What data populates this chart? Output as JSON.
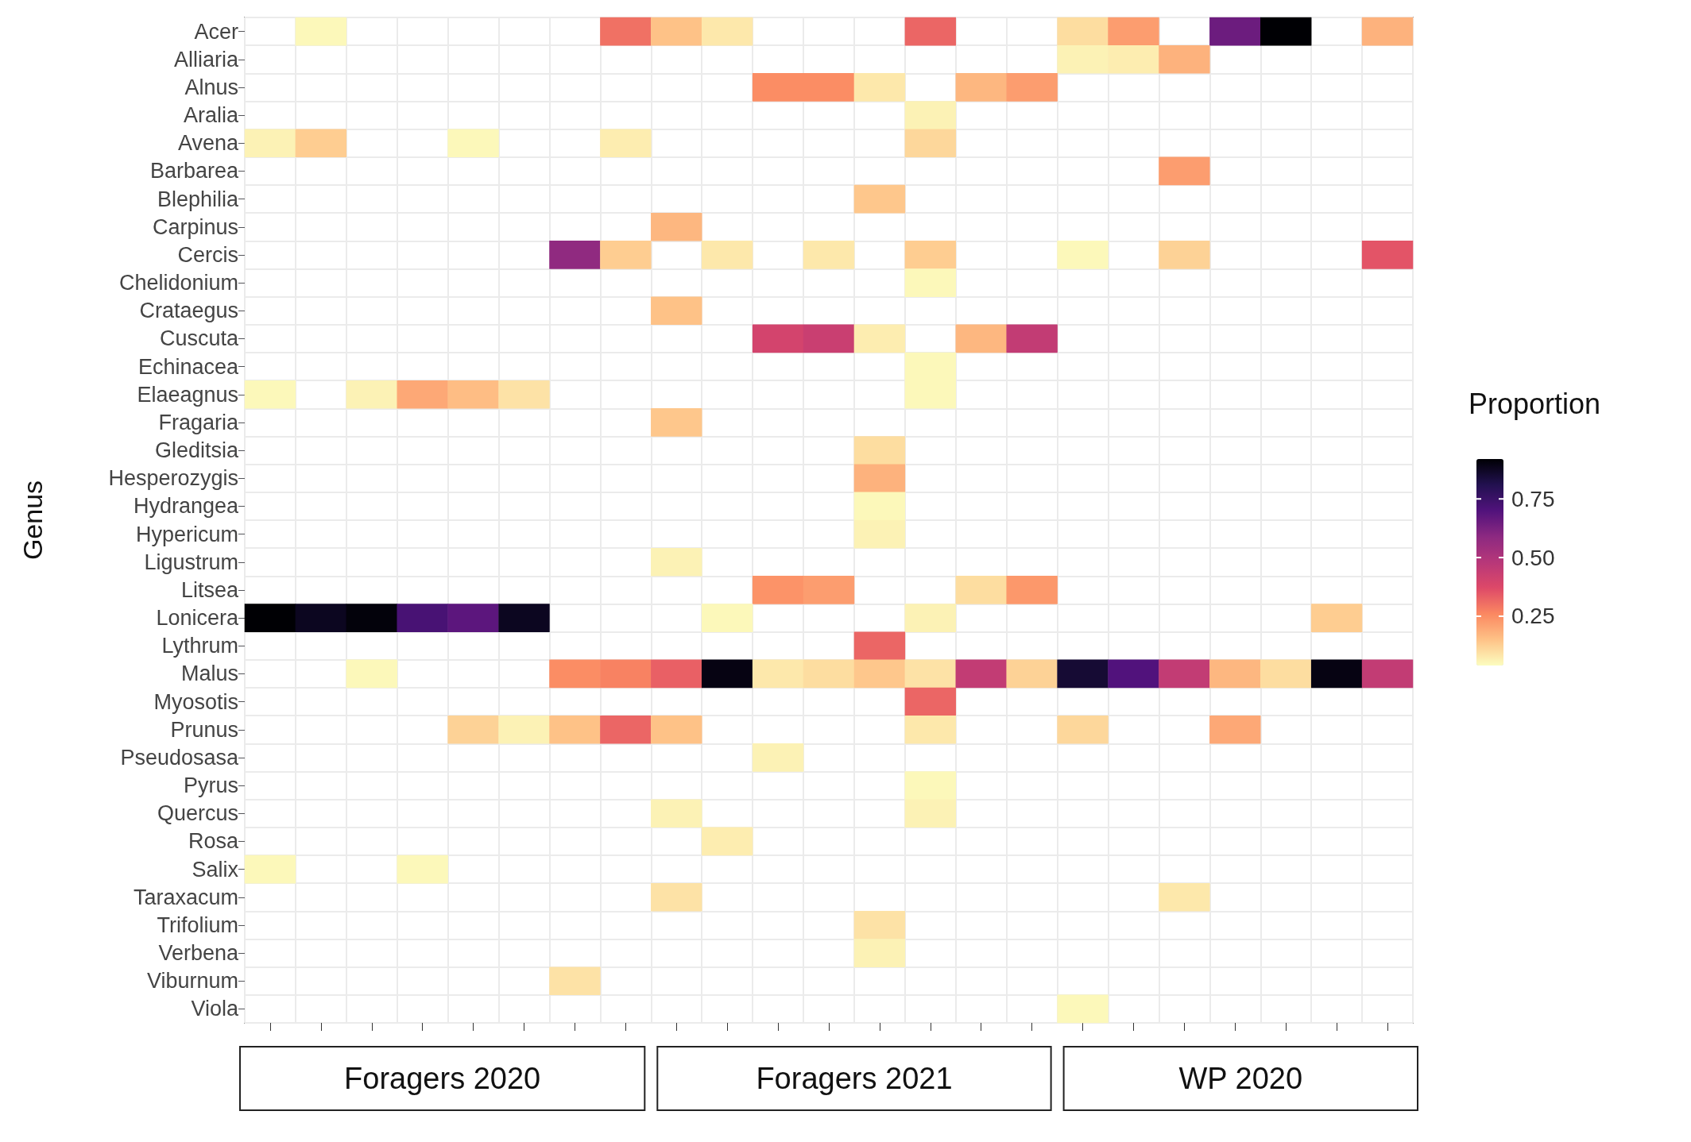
{
  "chart_data": {
    "type": "heatmap",
    "ylabel": "Genus",
    "tick_labels": "y",
    "grid": true,
    "clim": [
      0.04,
      0.92
    ],
    "clabel": "Proportion",
    "cticks": [
      {
        "value": 0.25,
        "label": "0.25"
      },
      {
        "value": 0.5,
        "label": "0.50"
      },
      {
        "value": 0.75,
        "label": "0.75"
      }
    ],
    "annotations": [
      "Foragers 2020",
      "Foragers 2021",
      "WP 2020"
    ],
    "categories": [
      null,
      null,
      null,
      null,
      null,
      null,
      null,
      null,
      null,
      null,
      null,
      null,
      null,
      null,
      null,
      null,
      null,
      null,
      null,
      null,
      null,
      null,
      null
    ],
    "y_categories": [
      "Acer",
      "Alliaria",
      "Alnus",
      "Aralia",
      "Avena",
      "Barbarea",
      "Blephilia",
      "Carpinus",
      "Cercis",
      "Chelidonium",
      "Crataegus",
      "Cuscuta",
      "Echinacea",
      "Elaeagnus",
      "Fragaria",
      "Gleditsia",
      "Hesperozygis",
      "Hydrangea",
      "Hypericum",
      "Ligustrum",
      "Litsea",
      "Lonicera",
      "Lythrum",
      "Malus",
      "Myosotis",
      "Prunus",
      "Pseudosasa",
      "Pyrus",
      "Quercus",
      "Rosa",
      "Salix",
      "Taraxacum",
      "Trifolium",
      "Verbena",
      "Viburnum",
      "Viola"
    ],
    "cells": [
      [
        null,
        0.05,
        null,
        null,
        null,
        null,
        null,
        0.3,
        0.15,
        0.08,
        null,
        null,
        null,
        0.32,
        null,
        null,
        0.1,
        0.22,
        null,
        0.65,
        0.92,
        null,
        0.18
      ],
      [
        null,
        null,
        null,
        null,
        null,
        null,
        null,
        null,
        null,
        null,
        null,
        null,
        null,
        null,
        null,
        null,
        0.06,
        0.07,
        0.18,
        null,
        null,
        null,
        null
      ],
      [
        null,
        null,
        null,
        null,
        null,
        null,
        null,
        null,
        null,
        null,
        0.25,
        0.25,
        0.08,
        null,
        0.17,
        0.22,
        null,
        null,
        null,
        null,
        null,
        null,
        null
      ],
      [
        null,
        null,
        null,
        null,
        null,
        null,
        null,
        null,
        null,
        null,
        null,
        null,
        null,
        0.06,
        null,
        null,
        null,
        null,
        null,
        null,
        null,
        null,
        null
      ],
      [
        0.06,
        0.13,
        null,
        null,
        0.05,
        null,
        null,
        0.07,
        null,
        null,
        null,
        null,
        null,
        0.11,
        null,
        null,
        null,
        null,
        null,
        null,
        null,
        null,
        null
      ],
      [
        null,
        null,
        null,
        null,
        null,
        null,
        null,
        null,
        null,
        null,
        null,
        null,
        null,
        null,
        null,
        null,
        null,
        null,
        0.22,
        null,
        null,
        null,
        null
      ],
      [
        null,
        null,
        null,
        null,
        null,
        null,
        null,
        null,
        null,
        null,
        null,
        null,
        0.14,
        null,
        null,
        null,
        null,
        null,
        null,
        null,
        null,
        null,
        null
      ],
      [
        null,
        null,
        null,
        null,
        null,
        null,
        null,
        null,
        0.17,
        null,
        null,
        null,
        null,
        null,
        null,
        null,
        null,
        null,
        null,
        null,
        null,
        null,
        null
      ],
      [
        null,
        null,
        null,
        null,
        null,
        null,
        0.58,
        0.13,
        null,
        0.08,
        null,
        0.08,
        null,
        0.13,
        null,
        null,
        0.05,
        null,
        0.12,
        null,
        null,
        null,
        0.35
      ],
      [
        null,
        null,
        null,
        null,
        null,
        null,
        null,
        null,
        null,
        null,
        null,
        null,
        null,
        0.05,
        null,
        null,
        null,
        null,
        null,
        null,
        null,
        null,
        null
      ],
      [
        null,
        null,
        null,
        null,
        null,
        null,
        null,
        null,
        0.15,
        null,
        null,
        null,
        null,
        null,
        null,
        null,
        null,
        null,
        null,
        null,
        null,
        null,
        null
      ],
      [
        null,
        null,
        null,
        null,
        null,
        null,
        null,
        null,
        null,
        null,
        0.4,
        0.43,
        0.07,
        null,
        0.17,
        0.45,
        null,
        null,
        null,
        null,
        null,
        null,
        null
      ],
      [
        null,
        null,
        null,
        null,
        null,
        null,
        null,
        null,
        null,
        null,
        null,
        null,
        null,
        0.05,
        null,
        null,
        null,
        null,
        null,
        null,
        null,
        null,
        null
      ],
      [
        0.05,
        null,
        0.06,
        0.2,
        0.16,
        0.09,
        null,
        null,
        null,
        null,
        null,
        null,
        null,
        0.05,
        null,
        null,
        null,
        null,
        null,
        null,
        null,
        null,
        null
      ],
      [
        null,
        null,
        null,
        null,
        null,
        null,
        null,
        null,
        0.14,
        null,
        null,
        null,
        null,
        null,
        null,
        null,
        null,
        null,
        null,
        null,
        null,
        null,
        null
      ],
      [
        null,
        null,
        null,
        null,
        null,
        null,
        null,
        null,
        null,
        null,
        null,
        null,
        0.1,
        null,
        null,
        null,
        null,
        null,
        null,
        null,
        null,
        null,
        null
      ],
      [
        null,
        null,
        null,
        null,
        null,
        null,
        null,
        null,
        null,
        null,
        null,
        null,
        0.18,
        null,
        null,
        null,
        null,
        null,
        null,
        null,
        null,
        null,
        null
      ],
      [
        null,
        null,
        null,
        null,
        null,
        null,
        null,
        null,
        null,
        null,
        null,
        null,
        0.05,
        null,
        null,
        null,
        null,
        null,
        null,
        null,
        null,
        null,
        null
      ],
      [
        null,
        null,
        null,
        null,
        null,
        null,
        null,
        null,
        null,
        null,
        null,
        null,
        0.06,
        null,
        null,
        null,
        null,
        null,
        null,
        null,
        null,
        null,
        null
      ],
      [
        null,
        null,
        null,
        null,
        null,
        null,
        null,
        null,
        0.06,
        null,
        null,
        null,
        null,
        null,
        null,
        null,
        null,
        null,
        null,
        null,
        null,
        null,
        null
      ],
      [
        null,
        null,
        null,
        null,
        null,
        null,
        null,
        null,
        null,
        null,
        0.24,
        0.22,
        null,
        null,
        0.1,
        0.23,
        null,
        null,
        null,
        null,
        null,
        null,
        null
      ],
      [
        0.92,
        0.88,
        0.91,
        0.72,
        0.68,
        0.88,
        null,
        null,
        null,
        0.05,
        null,
        null,
        null,
        0.06,
        null,
        null,
        null,
        null,
        null,
        null,
        null,
        0.13,
        null
      ],
      [
        null,
        null,
        null,
        null,
        null,
        null,
        null,
        null,
        null,
        null,
        null,
        null,
        0.32,
        null,
        null,
        null,
        null,
        null,
        null,
        null,
        null,
        null,
        null
      ],
      [
        null,
        null,
        0.05,
        null,
        null,
        null,
        0.25,
        0.27,
        0.33,
        0.9,
        0.08,
        0.1,
        0.14,
        0.09,
        0.45,
        0.12,
        0.85,
        0.7,
        0.45,
        0.17,
        0.1,
        0.9,
        0.45
      ],
      [
        null,
        null,
        null,
        null,
        null,
        null,
        null,
        null,
        null,
        null,
        null,
        null,
        null,
        0.32,
        null,
        null,
        null,
        null,
        null,
        null,
        null,
        null,
        null
      ],
      [
        null,
        null,
        null,
        null,
        0.12,
        0.06,
        0.15,
        0.32,
        0.15,
        null,
        null,
        null,
        null,
        0.08,
        null,
        null,
        0.11,
        null,
        null,
        0.2,
        null,
        null,
        null
      ],
      [
        null,
        null,
        null,
        null,
        null,
        null,
        null,
        null,
        null,
        null,
        0.06,
        null,
        null,
        null,
        null,
        null,
        null,
        null,
        null,
        null,
        null,
        null,
        null
      ],
      [
        null,
        null,
        null,
        null,
        null,
        null,
        null,
        null,
        null,
        null,
        null,
        null,
        null,
        0.05,
        null,
        null,
        null,
        null,
        null,
        null,
        null,
        null,
        null
      ],
      [
        null,
        null,
        null,
        null,
        null,
        null,
        null,
        null,
        0.06,
        null,
        null,
        null,
        null,
        0.06,
        null,
        null,
        null,
        null,
        null,
        null,
        null,
        null,
        null
      ],
      [
        null,
        null,
        null,
        null,
        null,
        null,
        null,
        null,
        null,
        0.07,
        null,
        null,
        null,
        null,
        null,
        null,
        null,
        null,
        null,
        null,
        null,
        null,
        null
      ],
      [
        0.05,
        null,
        null,
        0.05,
        null,
        null,
        null,
        null,
        null,
        null,
        null,
        null,
        null,
        null,
        null,
        null,
        null,
        null,
        null,
        null,
        null,
        null,
        null
      ],
      [
        null,
        null,
        null,
        null,
        null,
        null,
        null,
        null,
        0.09,
        null,
        null,
        null,
        null,
        null,
        null,
        null,
        null,
        null,
        0.08,
        null,
        null,
        null,
        null
      ],
      [
        null,
        null,
        null,
        null,
        null,
        null,
        null,
        null,
        null,
        null,
        null,
        null,
        0.09,
        null,
        null,
        null,
        null,
        null,
        null,
        null,
        null,
        null,
        null
      ],
      [
        null,
        null,
        null,
        null,
        null,
        null,
        null,
        null,
        null,
        null,
        null,
        null,
        0.06,
        null,
        null,
        null,
        null,
        null,
        null,
        null,
        null,
        null,
        null
      ],
      [
        null,
        null,
        null,
        null,
        null,
        null,
        0.09,
        null,
        null,
        null,
        null,
        null,
        null,
        null,
        null,
        null,
        null,
        null,
        null,
        null,
        null,
        null,
        null
      ],
      [
        null,
        null,
        null,
        null,
        null,
        null,
        null,
        null,
        null,
        null,
        null,
        null,
        null,
        null,
        null,
        null,
        0.05,
        null,
        null,
        null,
        null,
        null,
        null
      ]
    ]
  }
}
